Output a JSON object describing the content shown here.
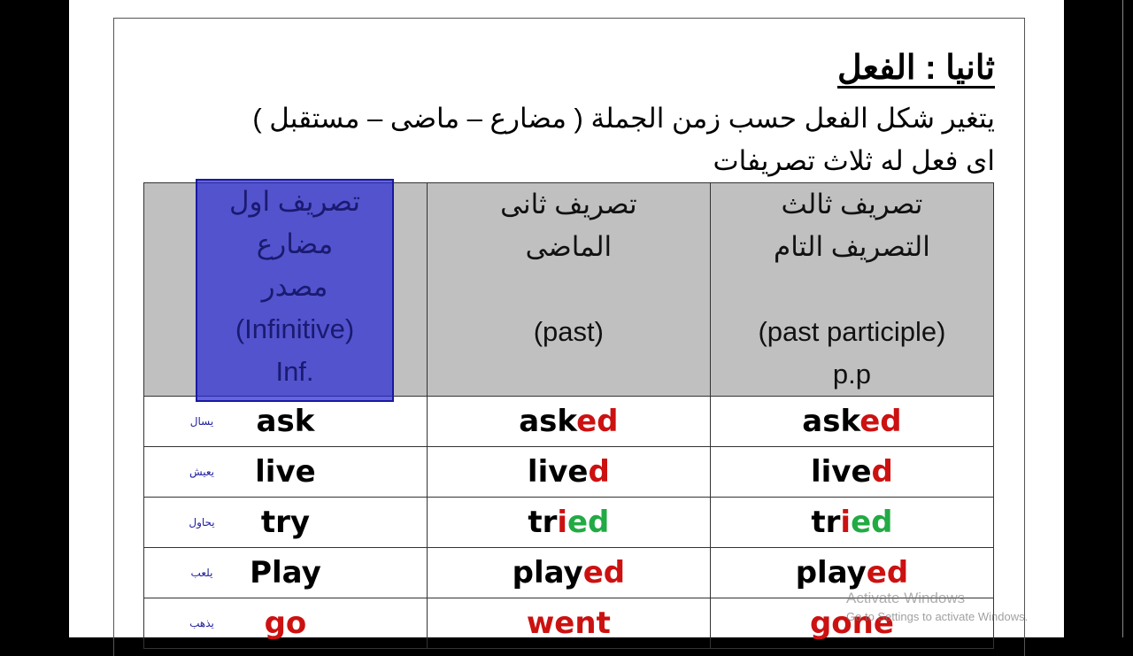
{
  "heading": "ثانيا : الفعل",
  "line1": "يتغير شكل الفعل حسب زمن الجملة ( مضارع – ماضى – مستقبل )",
  "line2": "اى فعل له ثلاث تصريفات",
  "columns": [
    {
      "l1": "تصريف اول",
      "l2": "مضارع",
      "l3": "مصدر",
      "l4": "(Infinitive)",
      "l5": "Inf."
    },
    {
      "l1": "تصريف ثانى",
      "l2": "الماضى",
      "l4": "(past)"
    },
    {
      "l1": "تصريف ثالث",
      "l2": "التصريف التام",
      "l4": "(past participle)",
      "l5": "p.p"
    }
  ],
  "highlight_color": "#2828d2",
  "colors": {
    "black": "#000000",
    "red": "#cc1111",
    "green": "#22aa44"
  },
  "rows": [
    {
      "gloss": "يسال",
      "cells": [
        [
          [
            "ask",
            "black"
          ]
        ],
        [
          [
            "ask",
            "black"
          ],
          [
            "ed",
            "red"
          ]
        ],
        [
          [
            "ask",
            "black"
          ],
          [
            "ed",
            "red"
          ]
        ]
      ]
    },
    {
      "gloss": "يعيش",
      "cells": [
        [
          [
            "live",
            "black"
          ]
        ],
        [
          [
            "live",
            "black"
          ],
          [
            "d",
            "red"
          ]
        ],
        [
          [
            "live",
            "black"
          ],
          [
            "d",
            "red"
          ]
        ]
      ]
    },
    {
      "gloss": "يحاول",
      "cells": [
        [
          [
            "try",
            "black"
          ]
        ],
        [
          [
            "tr",
            "black"
          ],
          [
            "i",
            "red"
          ],
          [
            "ed",
            "green"
          ]
        ],
        [
          [
            "tr",
            "black"
          ],
          [
            "i",
            "red"
          ],
          [
            "ed",
            "green"
          ]
        ]
      ]
    },
    {
      "gloss": "يلعب",
      "cells": [
        [
          [
            "Play",
            "black"
          ]
        ],
        [
          [
            "play",
            "black"
          ],
          [
            "ed",
            "red"
          ]
        ],
        [
          [
            "play",
            "black"
          ],
          [
            "ed",
            "red"
          ]
        ]
      ]
    },
    {
      "gloss": "يذهب",
      "cells": [
        [
          [
            "go",
            "red"
          ]
        ],
        [
          [
            "went",
            "red"
          ]
        ],
        [
          [
            "gone",
            "red"
          ]
        ]
      ]
    }
  ],
  "watermark": {
    "title": "Activate Windows",
    "subtitle": "Go to Settings to activate Windows."
  }
}
